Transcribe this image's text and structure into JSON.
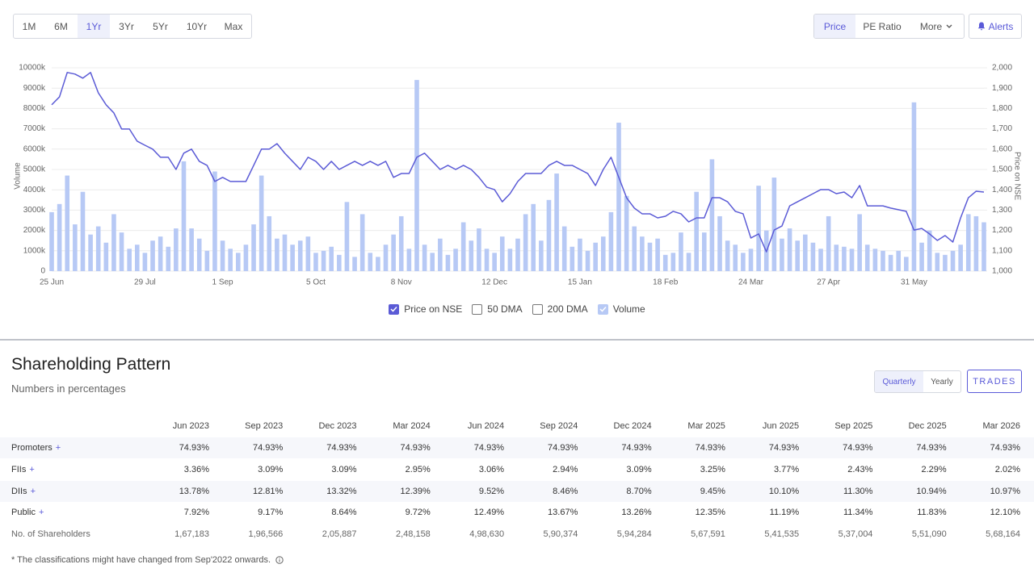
{
  "toolbar": {
    "ranges": [
      "1M",
      "6M",
      "1Yr",
      "3Yr",
      "5Yr",
      "10Yr",
      "Max"
    ],
    "active_range_index": 2,
    "views": [
      "Price",
      "PE Ratio",
      "More"
    ],
    "active_view_index": 0,
    "alerts": "Alerts"
  },
  "chart_data": {
    "type": "combo",
    "ylabel": "Volume",
    "y2label": "Price on NSE",
    "categories": [
      "25 Jun",
      null,
      null,
      null,
      null,
      null,
      null,
      null,
      null,
      null,
      null,
      null,
      "29 Jul",
      null,
      null,
      null,
      null,
      null,
      null,
      null,
      null,
      null,
      "1 Sep",
      null,
      null,
      null,
      null,
      null,
      null,
      null,
      null,
      null,
      null,
      null,
      "5 Oct",
      null,
      null,
      null,
      null,
      null,
      null,
      null,
      null,
      null,
      null,
      "8 Nov",
      null,
      null,
      null,
      null,
      null,
      null,
      null,
      null,
      null,
      null,
      null,
      "12 Dec",
      null,
      null,
      null,
      null,
      null,
      null,
      null,
      null,
      null,
      null,
      "15 Jan",
      null,
      null,
      null,
      null,
      null,
      null,
      null,
      null,
      null,
      null,
      "18 Feb",
      null,
      null,
      null,
      null,
      null,
      null,
      null,
      null,
      null,
      null,
      "24 Mar",
      null,
      null,
      null,
      null,
      null,
      null,
      null,
      null,
      null,
      "27 Apr",
      null,
      null,
      null,
      null,
      null,
      null,
      null,
      null,
      null,
      null,
      "31 May",
      null,
      null,
      null,
      null,
      null,
      null,
      null,
      null,
      null
    ],
    "series": [
      {
        "name": "Price on NSE",
        "type": "line",
        "axis": "y2",
        "color": "#5b5bd6",
        "visible": true,
        "values": [
          1818,
          1857,
          1977,
          1969,
          1949,
          1977,
          1877,
          1818,
          1778,
          1699,
          1699,
          1639,
          1619,
          1600,
          1560,
          1560,
          1500,
          1580,
          1600,
          1540,
          1520,
          1441,
          1461,
          1441,
          1441,
          1441,
          1520,
          1600,
          1600,
          1627,
          1580,
          1540,
          1500,
          1560,
          1540,
          1500,
          1540,
          1500,
          1520,
          1540,
          1520,
          1540,
          1520,
          1540,
          1461,
          1480,
          1480,
          1560,
          1580,
          1540,
          1500,
          1520,
          1500,
          1520,
          1500,
          1461,
          1413,
          1401,
          1341,
          1381,
          1441,
          1480,
          1480,
          1480,
          1520,
          1540,
          1520,
          1520,
          1500,
          1480,
          1421,
          1500,
          1560,
          1461,
          1361,
          1310,
          1282,
          1282,
          1262,
          1270,
          1294,
          1282,
          1242,
          1262,
          1262,
          1361,
          1361,
          1341,
          1294,
          1282,
          1163,
          1183,
          1095,
          1202,
          1222,
          1321,
          1341,
          1361,
          1381,
          1401,
          1401,
          1381,
          1389,
          1361,
          1421,
          1321,
          1321,
          1321,
          1310,
          1302,
          1294,
          1202,
          1210,
          1183,
          1151,
          1175,
          1143,
          1262,
          1361,
          1393,
          1389
        ]
      },
      {
        "name": "50 DMA",
        "visible": false
      },
      {
        "name": "200 DMA",
        "visible": false
      },
      {
        "name": "Volume",
        "type": "bar",
        "axis": "y",
        "color": "#b7c9f5",
        "visible": true,
        "values": [
          2900,
          3300,
          4700,
          2300,
          3900,
          1800,
          2200,
          1400,
          2800,
          1900,
          1100,
          1300,
          900,
          1500,
          1700,
          1200,
          2100,
          5400,
          2100,
          1600,
          1000,
          4900,
          1500,
          1100,
          900,
          1300,
          2300,
          4700,
          2700,
          1600,
          1800,
          1300,
          1500,
          1700,
          900,
          1000,
          1200,
          800,
          3400,
          700,
          2800,
          900,
          700,
          1300,
          1800,
          2700,
          1100,
          9400,
          1300,
          900,
          1600,
          800,
          1100,
          2400,
          1500,
          2100,
          1100,
          900,
          1700,
          1100,
          1600,
          2800,
          3300,
          1500,
          3500,
          4800,
          2200,
          1200,
          1600,
          1000,
          1400,
          1700,
          2900,
          7300,
          3700,
          2200,
          1700,
          1400,
          1600,
          800,
          900,
          1900,
          900,
          3900,
          1900,
          5500,
          2700,
          1500,
          1300,
          900,
          1100,
          4200,
          2000,
          4600,
          1600,
          2100,
          1500,
          1800,
          1400,
          1100,
          2700,
          1300,
          1200,
          1100,
          2800,
          1300,
          1100,
          1000,
          800,
          1000,
          700,
          8300,
          1400,
          2000,
          900,
          800,
          1000,
          1300,
          2800,
          2700,
          2400
        ]
      }
    ],
    "ylim": [
      0,
      10000
    ],
    "yticks": [
      0,
      {
        "value": 1000,
        "label": "1000k"
      },
      {
        "value": 2000,
        "label": "2000k"
      },
      {
        "value": 3000,
        "label": "3000k"
      },
      {
        "value": 4000,
        "label": "4000k"
      },
      {
        "value": 5000,
        "label": "5000k"
      },
      {
        "value": 6000,
        "label": "6000k"
      },
      {
        "value": 7000,
        "label": "7000k"
      },
      {
        "value": 8000,
        "label": "8000k"
      },
      {
        "value": 9000,
        "label": "9000k"
      },
      {
        "value": 10000,
        "label": "10000k"
      }
    ],
    "y2lim": [
      1000,
      2000
    ],
    "y2ticks": [
      {
        "value": 1000,
        "label": "1,000"
      },
      {
        "value": 1100,
        "label": "1,100"
      },
      {
        "value": 1200,
        "label": "1,200"
      },
      {
        "value": 1300,
        "label": "1,300"
      },
      {
        "value": 1400,
        "label": "1,400"
      },
      {
        "value": 1500,
        "label": "1,500"
      },
      {
        "value": 1600,
        "label": "1,600"
      },
      {
        "value": 1700,
        "label": "1,700"
      },
      {
        "value": 1800,
        "label": "1,800"
      },
      {
        "value": 1900,
        "label": "1,900"
      },
      {
        "value": 2000,
        "label": "2,000"
      }
    ],
    "grid": true
  },
  "shareholding": {
    "title": "Shareholding Pattern",
    "subtitle": "Numbers in percentages",
    "periods": [
      "Quarterly",
      "Yearly"
    ],
    "active_period_index": 0,
    "trades": "TRADES",
    "columns": [
      "Jun 2023",
      "Sep 2023",
      "Dec 2023",
      "Mar 2024",
      "Jun 2024",
      "Sep 2024",
      "Dec 2024",
      "Mar 2025",
      "Jun 2025",
      "Sep 2025",
      "Dec 2025",
      "Mar 2026"
    ],
    "rows": [
      {
        "label": "Promoters",
        "expand": "+",
        "shaded": true,
        "values": [
          "74.93%",
          "74.93%",
          "74.93%",
          "74.93%",
          "74.93%",
          "74.93%",
          "74.93%",
          "74.93%",
          "74.93%",
          "74.93%",
          "74.93%",
          "74.93%"
        ]
      },
      {
        "label": "FIIs",
        "expand": "+",
        "shaded": false,
        "values": [
          "3.36%",
          "3.09%",
          "3.09%",
          "2.95%",
          "3.06%",
          "2.94%",
          "3.09%",
          "3.25%",
          "3.77%",
          "2.43%",
          "2.29%",
          "2.02%"
        ]
      },
      {
        "label": "DIIs",
        "expand": "+",
        "shaded": true,
        "values": [
          "13.78%",
          "12.81%",
          "13.32%",
          "12.39%",
          "9.52%",
          "8.46%",
          "8.70%",
          "9.45%",
          "10.10%",
          "11.30%",
          "10.94%",
          "10.97%"
        ]
      },
      {
        "label": "Public",
        "expand": "+",
        "shaded": false,
        "values": [
          "7.92%",
          "9.17%",
          "8.64%",
          "9.72%",
          "12.49%",
          "13.67%",
          "13.26%",
          "12.35%",
          "11.19%",
          "11.34%",
          "11.83%",
          "12.10%"
        ]
      },
      {
        "label": "No. of Shareholders",
        "shaded": false,
        "values": [
          "1,67,183",
          "1,96,566",
          "2,05,887",
          "2,48,158",
          "4,98,630",
          "5,90,374",
          "5,94,284",
          "5,67,591",
          "5,41,535",
          "5,37,004",
          "5,51,090",
          "5,68,164"
        ]
      }
    ],
    "footnote": "* The classifications might have changed from Sep'2022 onwards."
  }
}
